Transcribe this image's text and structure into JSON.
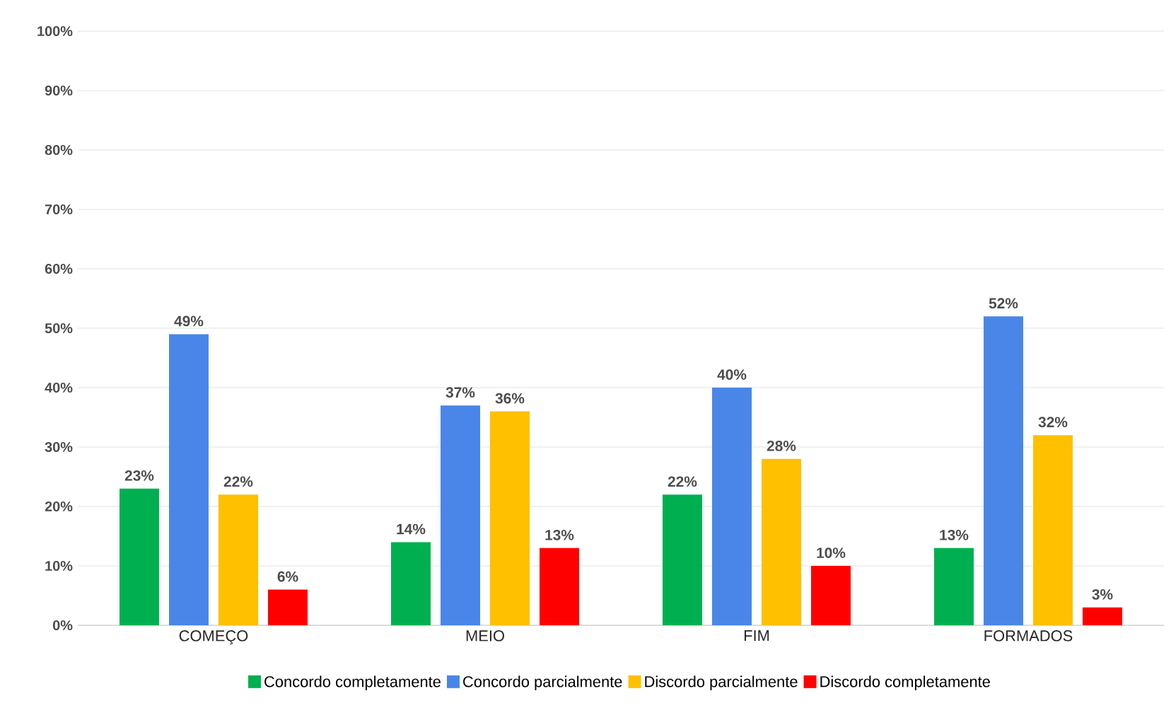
{
  "chart_data": {
    "type": "bar",
    "categories": [
      "COMEÇO",
      "MEIO",
      "FIM",
      "FORMADOS"
    ],
    "series": [
      {
        "name": "Concordo completamente",
        "color": "#00b050",
        "values": [
          23,
          14,
          22,
          13
        ],
        "value_labels": [
          "23%",
          "14%",
          "22%",
          "13%"
        ]
      },
      {
        "name": "Concordo parcialmente",
        "color": "#4a86e8",
        "values": [
          49,
          37,
          40,
          52
        ],
        "value_labels": [
          "49%",
          "37%",
          "40%",
          "52%"
        ]
      },
      {
        "name": "Discordo parcialmente",
        "color": "#ffc000",
        "values": [
          22,
          36,
          28,
          32
        ],
        "value_labels": [
          "22%",
          "36%",
          "28%",
          "32%"
        ]
      },
      {
        "name": "Discordo completamente",
        "color": "#ff0000",
        "values": [
          6,
          13,
          10,
          3
        ],
        "value_labels": [
          "6%",
          "13%",
          "10%",
          "3%"
        ]
      }
    ],
    "ylim": [
      0,
      100
    ],
    "yticks": [
      {
        "value": 0,
        "label": "0%"
      },
      {
        "value": 10,
        "label": "10%"
      },
      {
        "value": 20,
        "label": "20%"
      },
      {
        "value": 30,
        "label": "30%"
      },
      {
        "value": 40,
        "label": "40%"
      },
      {
        "value": 50,
        "label": "50%"
      },
      {
        "value": 60,
        "label": "60%"
      },
      {
        "value": 70,
        "label": "70%"
      },
      {
        "value": 80,
        "label": "80%"
      },
      {
        "value": 90,
        "label": "90%"
      },
      {
        "value": 100,
        "label": "100%"
      }
    ],
    "grid": "y",
    "legend": "bottom"
  }
}
